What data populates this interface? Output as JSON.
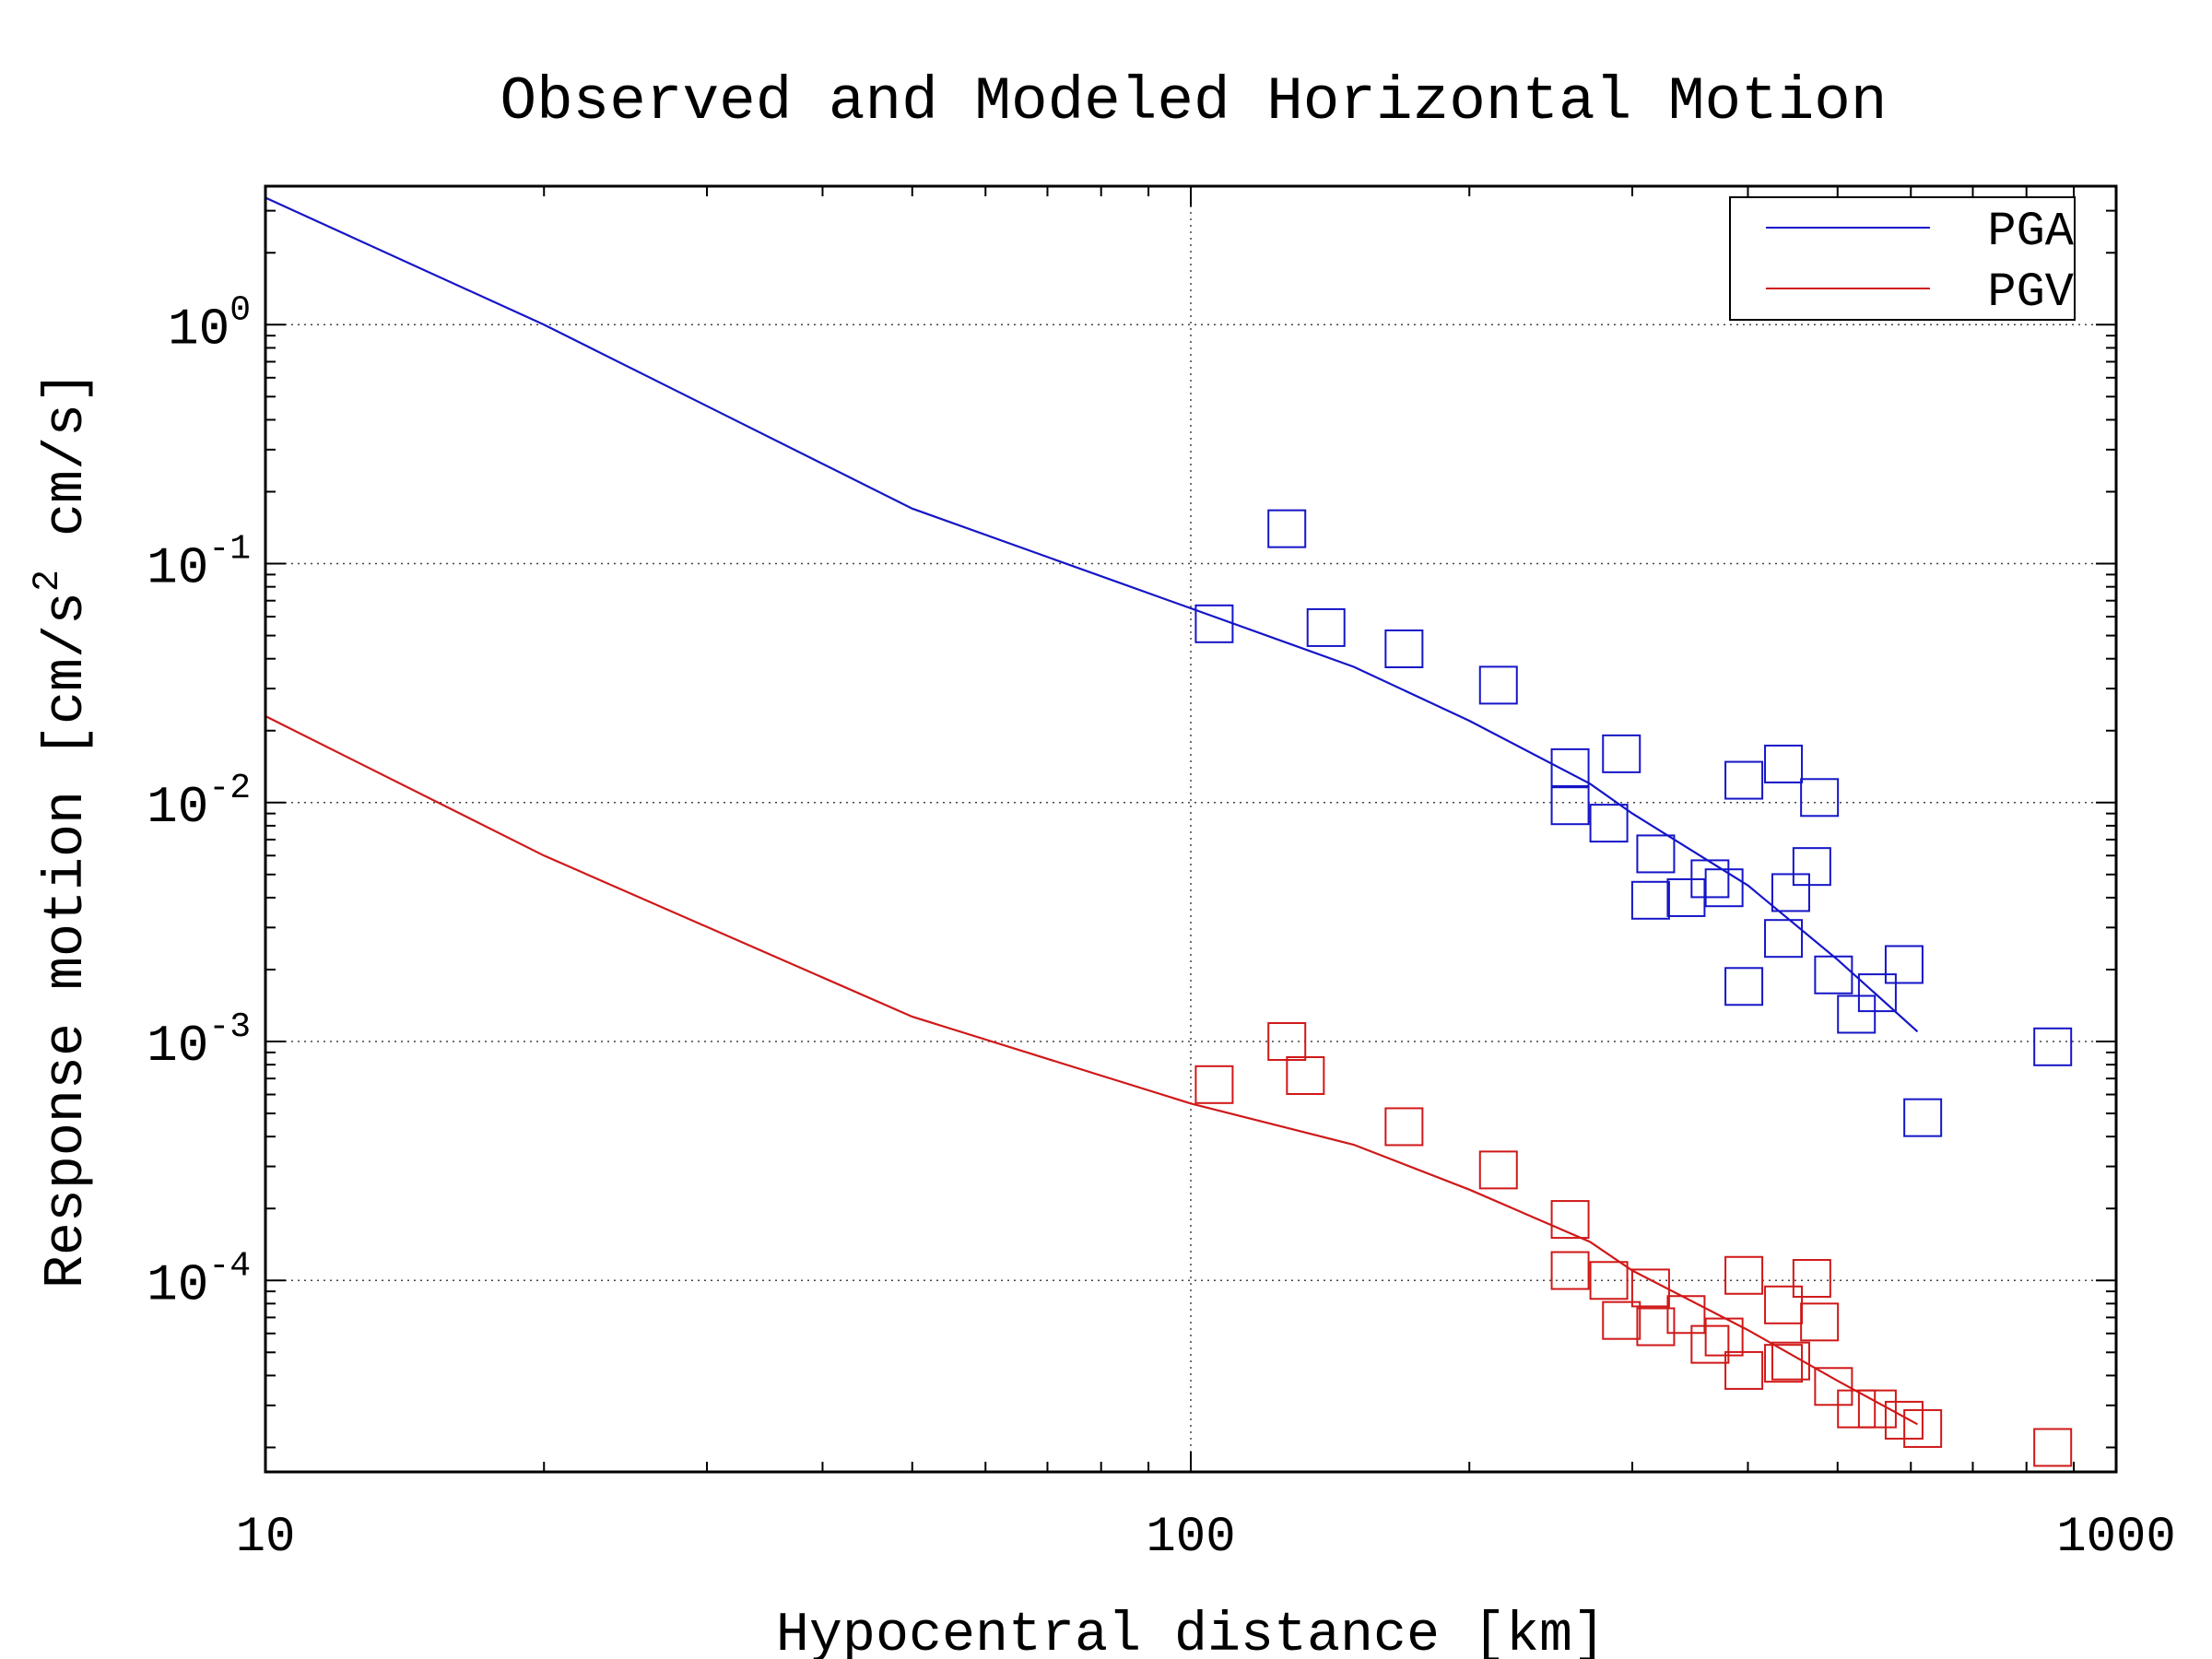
{
  "chart_data": {
    "type": "scatter",
    "title": "Observed and Modeled Horizontal Motion",
    "xlabel": "Hypocentral distance [km]",
    "ylabel_base": "Response motion  [cm/s",
    "ylabel_sup": "2",
    "ylabel_tail": "   cm/s]",
    "x_scale": "log",
    "y_scale": "log",
    "xlim": [
      10,
      1000
    ],
    "ylim": [
      1.58e-05,
      3.8
    ],
    "x_ticks": [
      {
        "value": 10,
        "label": "10"
      },
      {
        "value": 100,
        "label": "100"
      },
      {
        "value": 1000,
        "label": "1000"
      }
    ],
    "y_ticks": [
      {
        "value": 1,
        "base": "10",
        "exp": "0"
      },
      {
        "value": 0.1,
        "base": "10",
        "exp": "-1"
      },
      {
        "value": 0.01,
        "base": "10",
        "exp": "-2"
      },
      {
        "value": 0.001,
        "base": "10",
        "exp": "-3"
      },
      {
        "value": 0.0001,
        "base": "10",
        "exp": "-4"
      }
    ],
    "grid": "dotted",
    "legend_position": "top-right",
    "series": [
      {
        "name": "PGA",
        "color": "#1515c8",
        "model": [
          [
            10,
            3.4
          ],
          [
            20,
            1.0
          ],
          [
            50,
            0.17
          ],
          [
            100,
            0.065
          ],
          [
            150,
            0.037
          ],
          [
            200,
            0.022
          ],
          [
            270,
            0.012
          ],
          [
            300,
            0.009
          ],
          [
            400,
            0.0045
          ],
          [
            500,
            0.0022
          ],
          [
            610,
            0.0011
          ]
        ],
        "observed": [
          [
            106,
            0.056
          ],
          [
            127,
            0.14
          ],
          [
            140,
            0.054
          ],
          [
            170,
            0.044
          ],
          [
            215,
            0.031
          ],
          [
            257,
            0.014
          ],
          [
            257,
            0.0097
          ],
          [
            283,
            0.0082
          ],
          [
            292,
            0.016
          ],
          [
            318,
            0.0061
          ],
          [
            314,
            0.0039
          ],
          [
            343,
            0.004
          ],
          [
            364,
            0.0048
          ],
          [
            377,
            0.0044
          ],
          [
            396,
            0.0124
          ],
          [
            396,
            0.0017
          ],
          [
            437,
            0.0145
          ],
          [
            437,
            0.0027
          ],
          [
            445,
            0.0042
          ],
          [
            469,
            0.0054
          ],
          [
            478,
            0.0105
          ],
          [
            495,
            0.0019
          ],
          [
            524,
            0.0013
          ],
          [
            552,
            0.0016
          ],
          [
            590,
            0.0021
          ],
          [
            618,
            0.00048
          ],
          [
            854,
            0.00095
          ]
        ]
      },
      {
        "name": "PGV",
        "color": "#d01818",
        "model": [
          [
            10,
            0.023
          ],
          [
            20,
            0.006
          ],
          [
            50,
            0.00127
          ],
          [
            100,
            0.00055
          ],
          [
            150,
            0.00037
          ],
          [
            200,
            0.00024
          ],
          [
            270,
            0.000145
          ],
          [
            300,
            0.00011
          ],
          [
            400,
            6.2e-05
          ],
          [
            500,
            3.8e-05
          ],
          [
            610,
            2.5e-05
          ]
        ],
        "observed": [
          [
            106,
            0.00066
          ],
          [
            127,
            0.001
          ],
          [
            133,
            0.00072
          ],
          [
            170,
            0.00044
          ],
          [
            215,
            0.00029
          ],
          [
            257,
            0.00018
          ],
          [
            257,
            0.00011
          ],
          [
            283,
            0.0001
          ],
          [
            292,
            6.8e-05
          ],
          [
            318,
            6.4e-05
          ],
          [
            314,
            9.3e-05
          ],
          [
            343,
            7.2e-05
          ],
          [
            364,
            5.4e-05
          ],
          [
            377,
            5.8e-05
          ],
          [
            396,
            0.000105
          ],
          [
            396,
            4.2e-05
          ],
          [
            437,
            7.9e-05
          ],
          [
            437,
            4.5e-05
          ],
          [
            445,
            4.6e-05
          ],
          [
            469,
            0.000102
          ],
          [
            478,
            6.7e-05
          ],
          [
            495,
            3.6e-05
          ],
          [
            524,
            2.9e-05
          ],
          [
            552,
            2.9e-05
          ],
          [
            590,
            2.6e-05
          ],
          [
            618,
            2.4e-05
          ],
          [
            854,
            2e-05
          ]
        ]
      }
    ]
  }
}
